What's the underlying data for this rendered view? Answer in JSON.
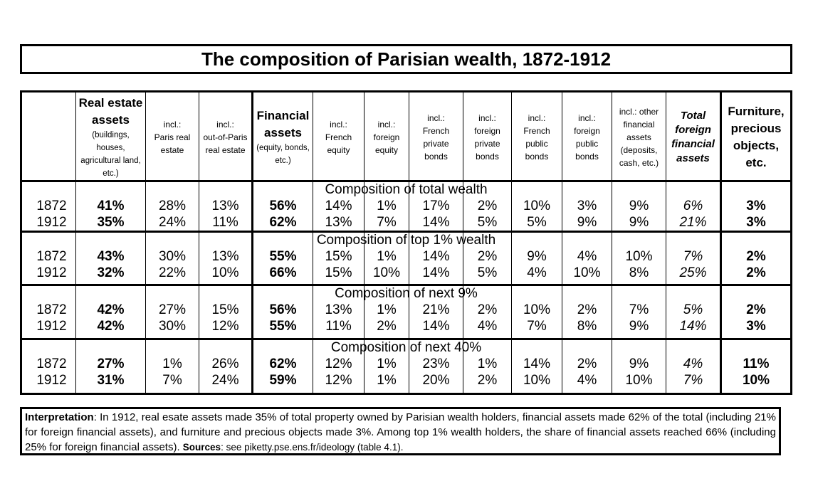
{
  "title": "The composition of Parisian wealth, 1872-1912",
  "chart_data": {
    "type": "table",
    "columns": [
      {
        "key": "real_estate",
        "label": "Real estate assets",
        "sub": "(buildings, houses, agricultural land, etc.)"
      },
      {
        "key": "paris_real_estate",
        "label": "incl.: Paris real estate"
      },
      {
        "key": "outside_paris_real_estate",
        "label": "incl.: out-of-Paris real estate"
      },
      {
        "key": "financial",
        "label": "Financial assets",
        "sub": "(equity, bonds, etc.)"
      },
      {
        "key": "french_equity",
        "label": "incl.: French equity"
      },
      {
        "key": "foreign_equity",
        "label": "incl.: foreign equity"
      },
      {
        "key": "french_private_bonds",
        "label": "incl.: French private bonds"
      },
      {
        "key": "foreign_private_bonds",
        "label": "incl.: foreign private bonds"
      },
      {
        "key": "french_public_bonds",
        "label": "incl.: French public bonds"
      },
      {
        "key": "foreign_public_bonds",
        "label": "incl.: foreign public bonds"
      },
      {
        "key": "other_financial",
        "label": "incl.: other financial assets (deposits, cash, etc.)"
      },
      {
        "key": "total_foreign_financial",
        "label": "Total foreign financial assets"
      },
      {
        "key": "furniture",
        "label": "Furniture, precious objects, etc."
      }
    ],
    "sections": [
      {
        "label": "Composition of total wealth",
        "rows": [
          {
            "year": "1872",
            "values": [
              "41%",
              "28%",
              "13%",
              "56%",
              "14%",
              "1%",
              "17%",
              "2%",
              "10%",
              "3%",
              "9%",
              "6%",
              "3%"
            ]
          },
          {
            "year": "1912",
            "values": [
              "35%",
              "24%",
              "11%",
              "62%",
              "13%",
              "7%",
              "14%",
              "5%",
              "5%",
              "9%",
              "9%",
              "21%",
              "3%"
            ]
          }
        ]
      },
      {
        "label": "Composition of top 1% wealth",
        "rows": [
          {
            "year": "1872",
            "values": [
              "43%",
              "30%",
              "13%",
              "55%",
              "15%",
              "1%",
              "14%",
              "2%",
              "9%",
              "4%",
              "10%",
              "7%",
              "2%"
            ]
          },
          {
            "year": "1912",
            "values": [
              "32%",
              "22%",
              "10%",
              "66%",
              "15%",
              "10%",
              "14%",
              "5%",
              "4%",
              "10%",
              "8%",
              "25%",
              "2%"
            ]
          }
        ]
      },
      {
        "label": "Composition of next 9%",
        "rows": [
          {
            "year": "1872",
            "values": [
              "42%",
              "27%",
              "15%",
              "56%",
              "13%",
              "1%",
              "21%",
              "2%",
              "10%",
              "2%",
              "7%",
              "5%",
              "2%"
            ]
          },
          {
            "year": "1912",
            "values": [
              "42%",
              "30%",
              "12%",
              "55%",
              "11%",
              "2%",
              "14%",
              "4%",
              "7%",
              "8%",
              "9%",
              "14%",
              "3%"
            ]
          }
        ]
      },
      {
        "label": "Composition of next 40%",
        "rows": [
          {
            "year": "1872",
            "values": [
              "27%",
              "1%",
              "26%",
              "62%",
              "12%",
              "1%",
              "23%",
              "1%",
              "14%",
              "2%",
              "9%",
              "4%",
              "11%"
            ]
          },
          {
            "year": "1912",
            "values": [
              "31%",
              "7%",
              "24%",
              "59%",
              "12%",
              "1%",
              "20%",
              "2%",
              "10%",
              "4%",
              "10%",
              "7%",
              "10%"
            ]
          }
        ]
      }
    ]
  },
  "headers": {
    "real_estate_l1": "Real estate",
    "real_estate_l2": "assets",
    "real_estate_sub": [
      "(buildings,",
      "houses,",
      "agricultural land,",
      "etc.)"
    ],
    "paris_real_estate": [
      "incl.:",
      "Paris real",
      "estate"
    ],
    "outside_paris_real_estate": [
      "incl.:",
      "out-of-Paris",
      "real estate"
    ],
    "financial_l1": "Financial",
    "financial_l2": "assets",
    "financial_sub": [
      "(equity, bonds,",
      "etc.)"
    ],
    "french_equity": [
      "incl.:",
      "French",
      "equity"
    ],
    "foreign_equity": [
      "incl.:",
      "foreign",
      "equity"
    ],
    "french_private_bonds": [
      "incl.:",
      "French",
      "private",
      "bonds"
    ],
    "foreign_private_bonds": [
      "incl.:",
      "foreign",
      "private",
      "bonds"
    ],
    "french_public_bonds": [
      "incl.:",
      "French",
      "public",
      "bonds"
    ],
    "foreign_public_bonds": [
      "incl.:",
      "foreign",
      "public",
      "bonds"
    ],
    "other_financial": [
      "incl.: other",
      "financial",
      "assets",
      "(deposits,",
      "cash, etc.)"
    ],
    "total_foreign": [
      "Total",
      "foreign",
      "financial",
      "assets"
    ],
    "furniture": [
      "Furniture,",
      "precious",
      "objects,",
      "etc."
    ]
  },
  "interpretation": {
    "label": "Interpretation",
    "text": ": In 1912, real esate assets made 35% of total property owned by Parisian wealth holders, financial assets made 62% of the total (including 21% for foreign financial assets), and furniture and precious objects made 3%. Among top 1% wealth holders, the share of financial assets reached 66% (including 25% for foreign financial assets). ",
    "sources_label": "Sources",
    "sources_text": ": see piketty.pse.ens.fr/ideology (table 4.1)."
  }
}
